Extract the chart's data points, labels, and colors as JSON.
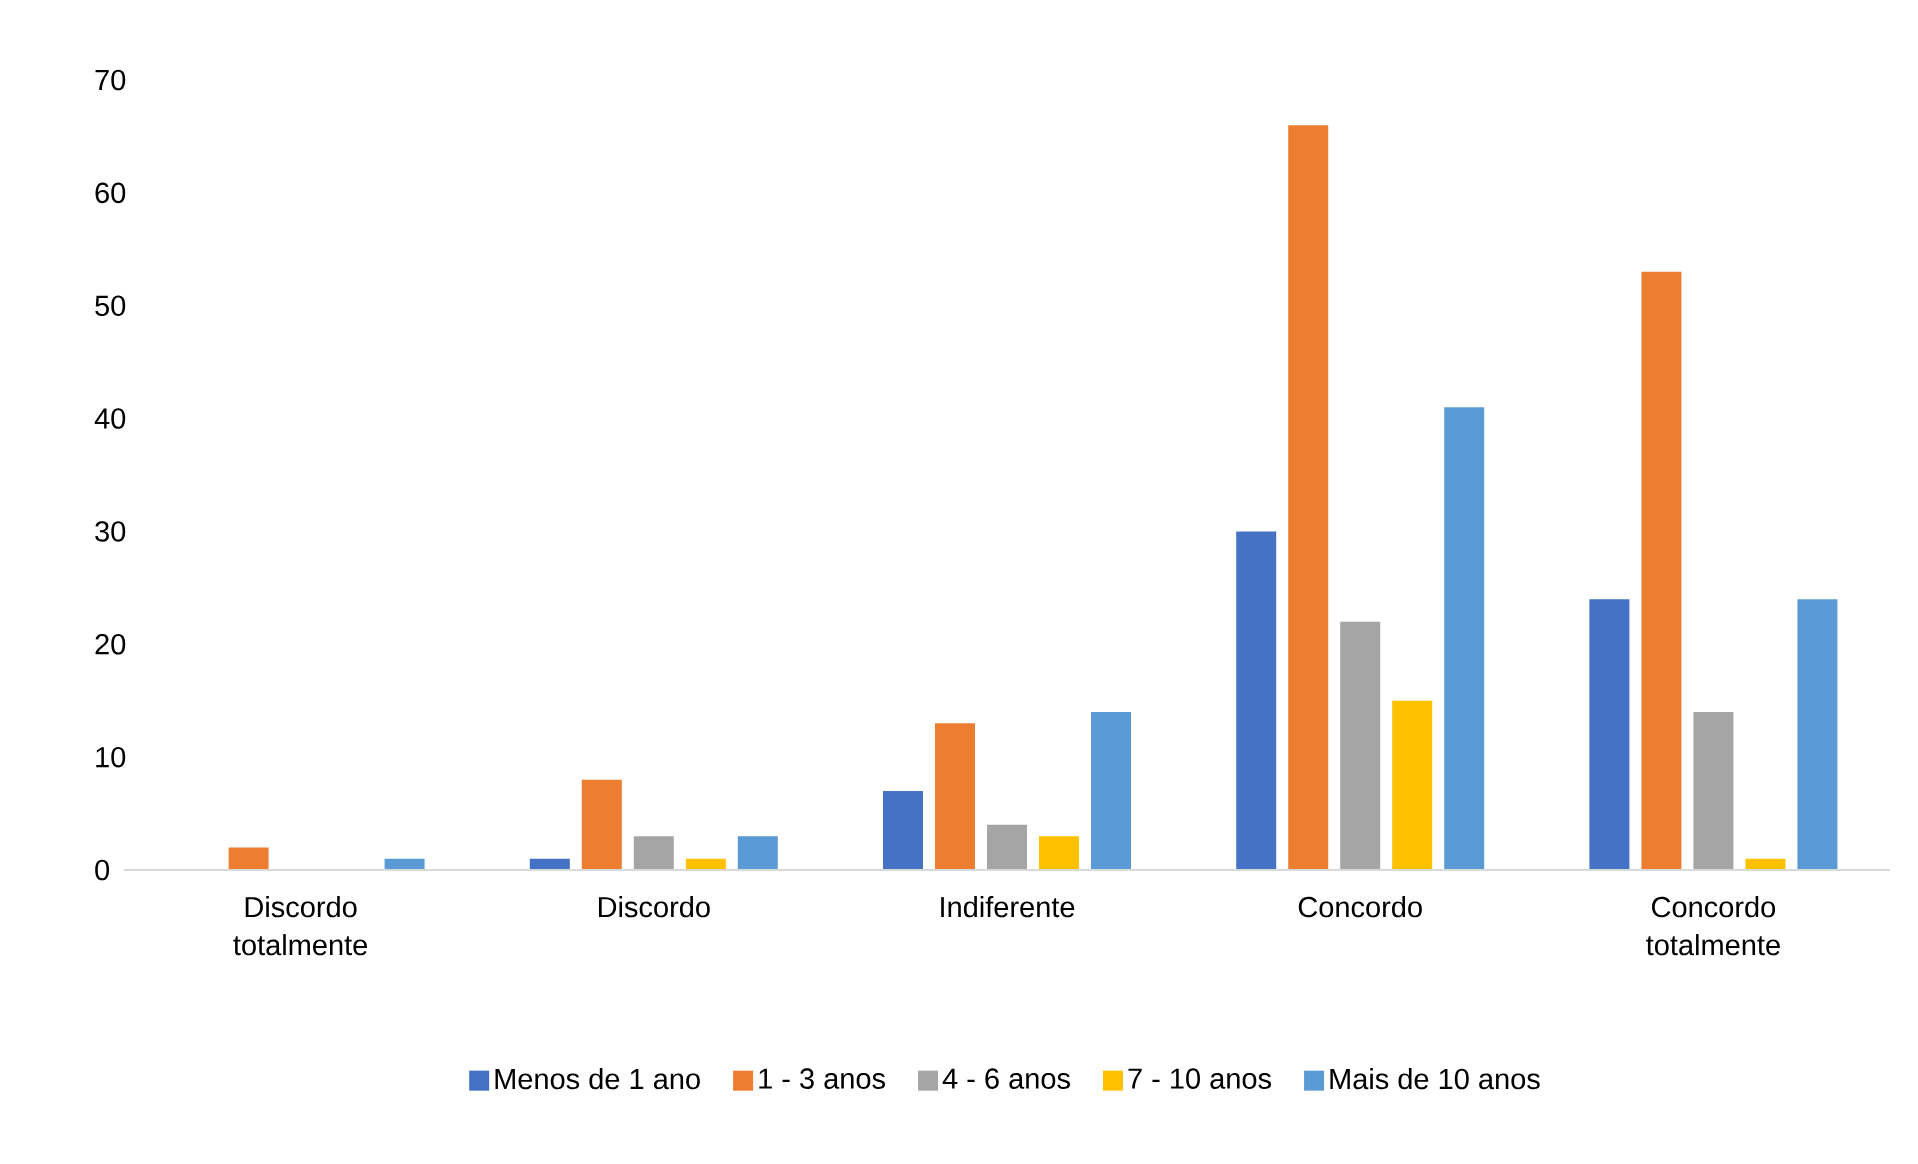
{
  "chart_data": {
    "type": "bar",
    "categories": [
      "Discordo totalmente",
      "Discordo",
      "Indiferente",
      "Concordo",
      "Concordo totalmente"
    ],
    "series": [
      {
        "name": "Menos de 1 ano",
        "color": "#4472c4",
        "values": [
          0,
          1,
          7,
          30,
          24
        ]
      },
      {
        "name": "1 - 3 anos",
        "color": "#ed7d31",
        "values": [
          2,
          8,
          13,
          66,
          53
        ]
      },
      {
        "name": "4 - 6 anos",
        "color": "#a5a5a5",
        "values": [
          0,
          3,
          4,
          22,
          14
        ]
      },
      {
        "name": "7 - 10 anos",
        "color": "#ffc000",
        "values": [
          0,
          1,
          3,
          15,
          1
        ]
      },
      {
        "name": "Mais de 10 anos",
        "color": "#5b9bd5",
        "values": [
          1,
          3,
          14,
          41,
          24
        ]
      }
    ],
    "ylim": [
      0,
      70
    ],
    "yticks": [
      0,
      10,
      20,
      30,
      40,
      50,
      60,
      70
    ],
    "grid": false,
    "legend": "bottom"
  }
}
